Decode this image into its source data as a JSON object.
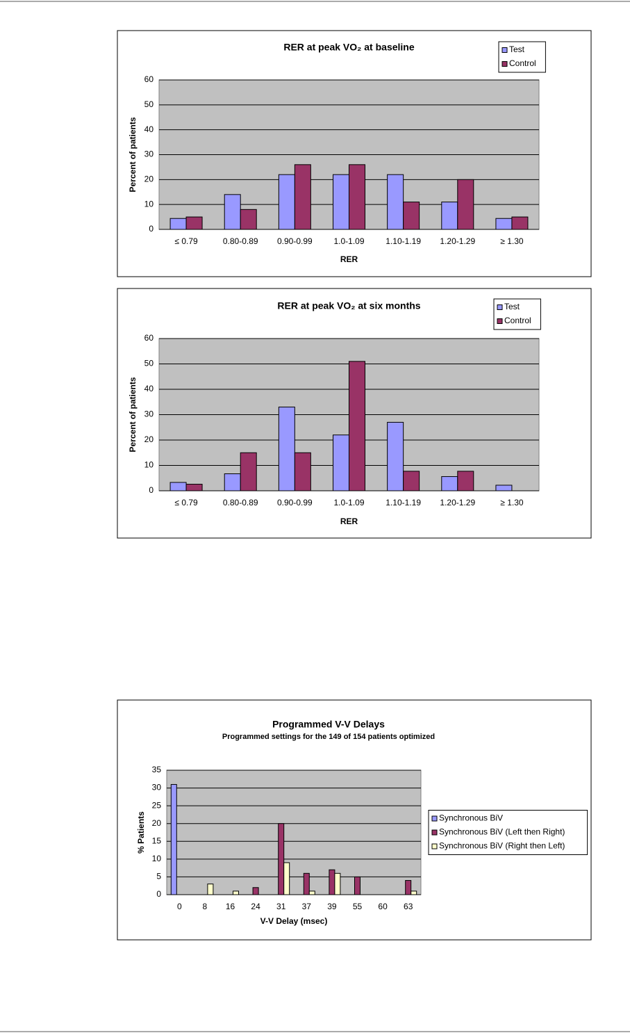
{
  "chart_data": [
    {
      "type": "bar",
      "title": "RER at peak VO₂ at baseline",
      "x_label": "RER",
      "y_label": "Percent of patients",
      "categories": [
        "≤ 0.79",
        "0.80-0.89",
        "0.90-0.99",
        "1.0-1.09",
        "1.10-1.19",
        "1.20-1.29",
        "≥ 1.30"
      ],
      "series": [
        {
          "name": "Test",
          "color": "#9999ff",
          "values": [
            4.4,
            14,
            22,
            22,
            22,
            11,
            4.4
          ]
        },
        {
          "name": "Control",
          "color": "#993366",
          "values": [
            5,
            8,
            26,
            26,
            11,
            20,
            5
          ]
        }
      ],
      "ylim": [
        0,
        60
      ],
      "yticks": [
        0,
        10,
        20,
        30,
        40,
        50,
        60
      ],
      "grid": true,
      "legend": "upper right"
    },
    {
      "type": "bar",
      "title": "RER at peak VO₂ at six months",
      "x_label": "RER",
      "y_label": "Percent of patients",
      "categories": [
        "≤ 0.79",
        "0.80-0.89",
        "0.90-0.99",
        "1.0-1.09",
        "1.10-1.19",
        "1.20-1.29",
        "≥ 1.30"
      ],
      "series": [
        {
          "name": "Test",
          "color": "#9999ff",
          "values": [
            3.3,
            6.7,
            33,
            22,
            27,
            5.6,
            2.2
          ]
        },
        {
          "name": "Control",
          "color": "#993366",
          "values": [
            2.6,
            15,
            15,
            51,
            7.7,
            7.7,
            0
          ]
        }
      ],
      "ylim": [
        0,
        60
      ],
      "yticks": [
        0,
        10,
        20,
        30,
        40,
        50,
        60
      ],
      "grid": true,
      "legend": "upper right"
    },
    {
      "type": "bar",
      "title": "Programmed V-V Delays",
      "subtitle": "Programmed settings for the 149 of 154 patients optimized",
      "x_label": "V-V Delay (msec)",
      "y_label": "% Patients",
      "categories": [
        "0",
        "8",
        "16",
        "24",
        "31",
        "37",
        "39",
        "55",
        "60",
        "63"
      ],
      "series": [
        {
          "name": "Synchronous BiV",
          "color": "#9999ff",
          "values": [
            31,
            0,
            0,
            0,
            0,
            0,
            0,
            0,
            0,
            0
          ]
        },
        {
          "name": "Synchronous BiV (Left then Right)",
          "color": "#993366",
          "values": [
            0,
            0,
            0,
            2,
            20,
            6,
            7,
            5,
            0,
            4
          ]
        },
        {
          "name": "Synchronous BiV (Right then Left)",
          "color": "#ffffcc",
          "values": [
            0,
            3,
            1,
            0,
            9,
            1,
            6,
            0,
            0,
            1
          ]
        }
      ],
      "ylim": [
        0,
        35
      ],
      "yticks": [
        0,
        5,
        10,
        15,
        20,
        25,
        30,
        35
      ],
      "grid": true,
      "legend": "right"
    }
  ]
}
